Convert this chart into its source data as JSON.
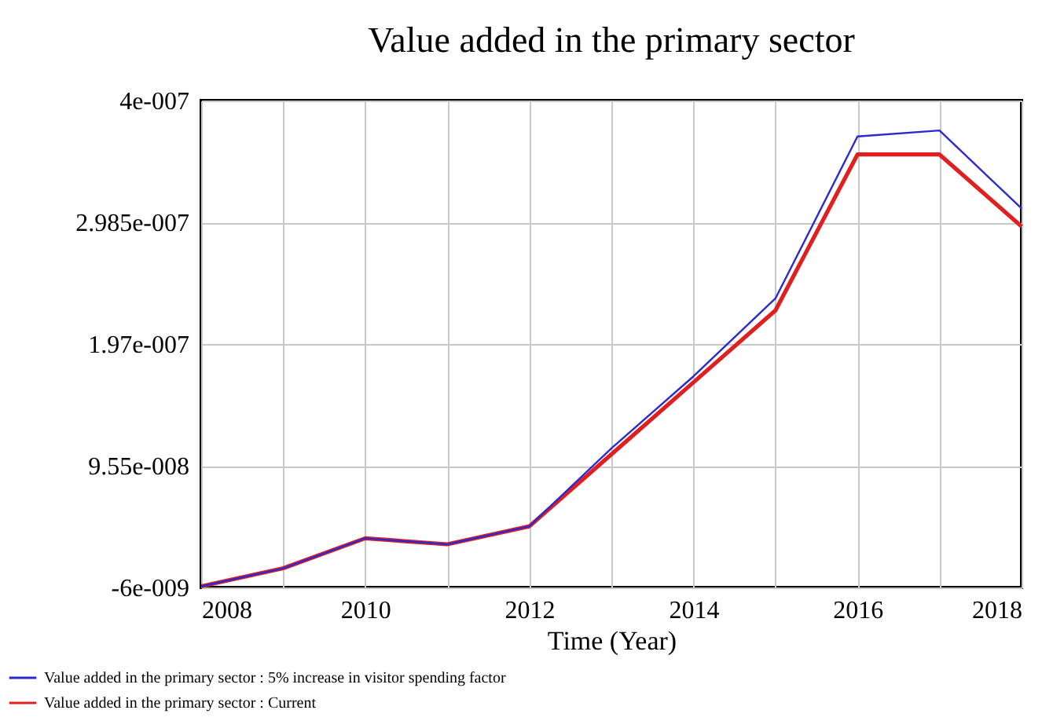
{
  "chart_data": {
    "type": "line",
    "title": "Value added in the primary sector",
    "xlabel": "Time (Year)",
    "x": [
      2008,
      2009,
      2010,
      2011,
      2012,
      2013,
      2014,
      2015,
      2016,
      2017,
      2018
    ],
    "series": [
      {
        "name": "Value added in the primary sector : 5% increase in visitor spending factor",
        "color": "#2a2ad0",
        "values": [
          -5e-09,
          1e-08,
          3.5e-08,
          3e-08,
          4.5e-08,
          1.1e-07,
          1.7e-07,
          2.35e-07,
          3.7e-07,
          3.75e-07,
          3.1e-07
        ]
      },
      {
        "name": "Value added in the primary sector : Current",
        "color": "#e02020",
        "values": [
          -5e-09,
          1e-08,
          3.5e-08,
          3e-08,
          4.5e-08,
          1.05e-07,
          1.65e-07,
          2.25e-07,
          3.55e-07,
          3.55e-07,
          2.95e-07
        ]
      }
    ],
    "xlim": [
      2008,
      2018
    ],
    "xticks": [
      2008,
      {
        "value": 2009,
        "label": null
      },
      2010,
      {
        "value": 2011,
        "label": null
      },
      2012,
      {
        "value": 2013,
        "label": null
      },
      2014,
      {
        "value": 2015,
        "label": null
      },
      2016,
      {
        "value": 2017,
        "label": null
      },
      2018
    ],
    "ylim": [
      -6e-09,
      4e-07
    ],
    "yticks": [
      {
        "value": -6e-09,
        "label": "-6e-009"
      },
      {
        "value": 9.55e-08,
        "label": "9.55e-008"
      },
      {
        "value": 1.97e-07,
        "label": "1.97e-007"
      },
      {
        "value": 2.985e-07,
        "label": "2.985e-007"
      },
      {
        "value": 4e-07,
        "label": "4e-007"
      }
    ],
    "grid": true,
    "legend": "bottom",
    "line_style": "solid",
    "marker": "none"
  }
}
